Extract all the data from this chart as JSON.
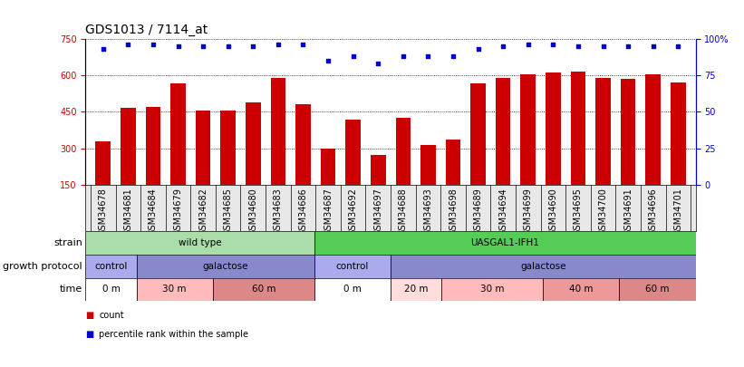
{
  "title": "GDS1013 / 7114_at",
  "samples": [
    "GSM34678",
    "GSM34681",
    "GSM34684",
    "GSM34679",
    "GSM34682",
    "GSM34685",
    "GSM34680",
    "GSM34683",
    "GSM34686",
    "GSM34687",
    "GSM34692",
    "GSM34697",
    "GSM34688",
    "GSM34693",
    "GSM34698",
    "GSM34689",
    "GSM34694",
    "GSM34699",
    "GSM34690",
    "GSM34695",
    "GSM34700",
    "GSM34691",
    "GSM34696",
    "GSM34701"
  ],
  "counts": [
    330,
    465,
    470,
    565,
    455,
    455,
    490,
    590,
    480,
    300,
    420,
    275,
    425,
    315,
    335,
    565,
    590,
    605,
    610,
    615,
    590,
    585,
    605,
    570
  ],
  "percentiles": [
    93,
    96,
    96,
    95,
    95,
    95,
    95,
    96,
    96,
    85,
    88,
    83,
    88,
    88,
    88,
    93,
    95,
    96,
    96,
    95,
    95,
    95,
    95,
    95
  ],
  "ylim_left": [
    150,
    750
  ],
  "ylim_right": [
    0,
    100
  ],
  "yticks_left": [
    150,
    300,
    450,
    600,
    750
  ],
  "yticks_right": [
    0,
    25,
    50,
    75,
    100
  ],
  "ytick_labels_right": [
    "0",
    "25",
    "50",
    "75",
    "100%"
  ],
  "bar_color": "#cc0000",
  "dot_color": "#0000cc",
  "grid_color": "#000000",
  "strain_row": {
    "label": "strain",
    "groups": [
      {
        "text": "wild type",
        "start": 0,
        "end": 9,
        "color": "#aaddaa"
      },
      {
        "text": "UASGAL1-IFH1",
        "start": 9,
        "end": 24,
        "color": "#55cc55"
      }
    ]
  },
  "protocol_row": {
    "label": "growth protocol",
    "groups": [
      {
        "text": "control",
        "start": 0,
        "end": 2,
        "color": "#aaaaee"
      },
      {
        "text": "galactose",
        "start": 2,
        "end": 9,
        "color": "#8888cc"
      },
      {
        "text": "control",
        "start": 9,
        "end": 12,
        "color": "#aaaaee"
      },
      {
        "text": "galactose",
        "start": 12,
        "end": 24,
        "color": "#8888cc"
      }
    ]
  },
  "time_row": {
    "label": "time",
    "groups": [
      {
        "text": "0 m",
        "start": 0,
        "end": 2,
        "color": "#ffffff"
      },
      {
        "text": "30 m",
        "start": 2,
        "end": 5,
        "color": "#ffbbbb"
      },
      {
        "text": "60 m",
        "start": 5,
        "end": 9,
        "color": "#dd8888"
      },
      {
        "text": "0 m",
        "start": 9,
        "end": 12,
        "color": "#ffffff"
      },
      {
        "text": "20 m",
        "start": 12,
        "end": 14,
        "color": "#ffdddd"
      },
      {
        "text": "30 m",
        "start": 14,
        "end": 18,
        "color": "#ffbbbb"
      },
      {
        "text": "40 m",
        "start": 18,
        "end": 21,
        "color": "#ee9999"
      },
      {
        "text": "60 m",
        "start": 21,
        "end": 24,
        "color": "#dd8888"
      }
    ]
  },
  "legend_items": [
    {
      "label": "count",
      "color": "#cc0000"
    },
    {
      "label": "percentile rank within the sample",
      "color": "#0000cc"
    }
  ],
  "background_color": "#ffffff",
  "title_fontsize": 10,
  "tick_fontsize": 7,
  "label_fontsize": 8,
  "annot_label_fontsize": 8
}
